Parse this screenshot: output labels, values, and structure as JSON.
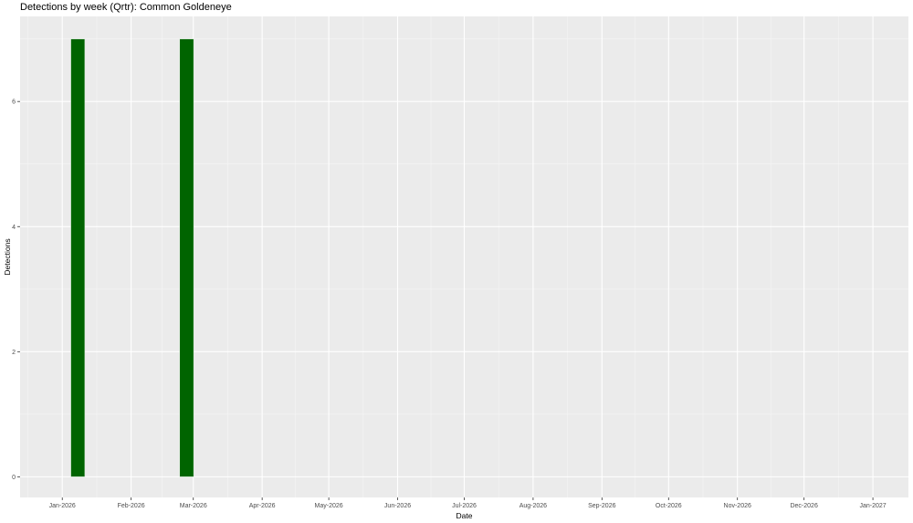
{
  "chart_data": {
    "type": "bar",
    "title": "Detections by week (Qrtr): Common Goldeneye",
    "xlabel": "Date",
    "ylabel": "Detections",
    "x": [
      "2026-01-08",
      "2026-02-26"
    ],
    "values": [
      7,
      7
    ],
    "bar_color": "#006400",
    "bar_outline": "#e0f0e0",
    "panel_background": "#ebebeb",
    "grid": true,
    "xlim": [
      "2025-12-13",
      "2027-01-17"
    ],
    "ylim": [
      -0.33,
      7.36
    ],
    "yticks": [
      0,
      2,
      4,
      6
    ],
    "xticks": [
      {
        "date": "2026-01-01",
        "label": "Jan-2026"
      },
      {
        "date": "2026-02-01",
        "label": "Feb-2026"
      },
      {
        "date": "2026-03-01",
        "label": "Mar-2026"
      },
      {
        "date": "2026-04-01",
        "label": "Apr-2026"
      },
      {
        "date": "2026-05-01",
        "label": "May-2026"
      },
      {
        "date": "2026-06-01",
        "label": "Jun-2026"
      },
      {
        "date": "2026-07-01",
        "label": "Jul-2026"
      },
      {
        "date": "2026-08-01",
        "label": "Aug-2026"
      },
      {
        "date": "2026-09-01",
        "label": "Sep-2026"
      },
      {
        "date": "2026-10-01",
        "label": "Oct-2026"
      },
      {
        "date": "2026-11-01",
        "label": "Nov-2026"
      },
      {
        "date": "2026-12-01",
        "label": "Dec-2026"
      },
      {
        "date": "2027-01-01",
        "label": "Jan-2027"
      }
    ]
  }
}
